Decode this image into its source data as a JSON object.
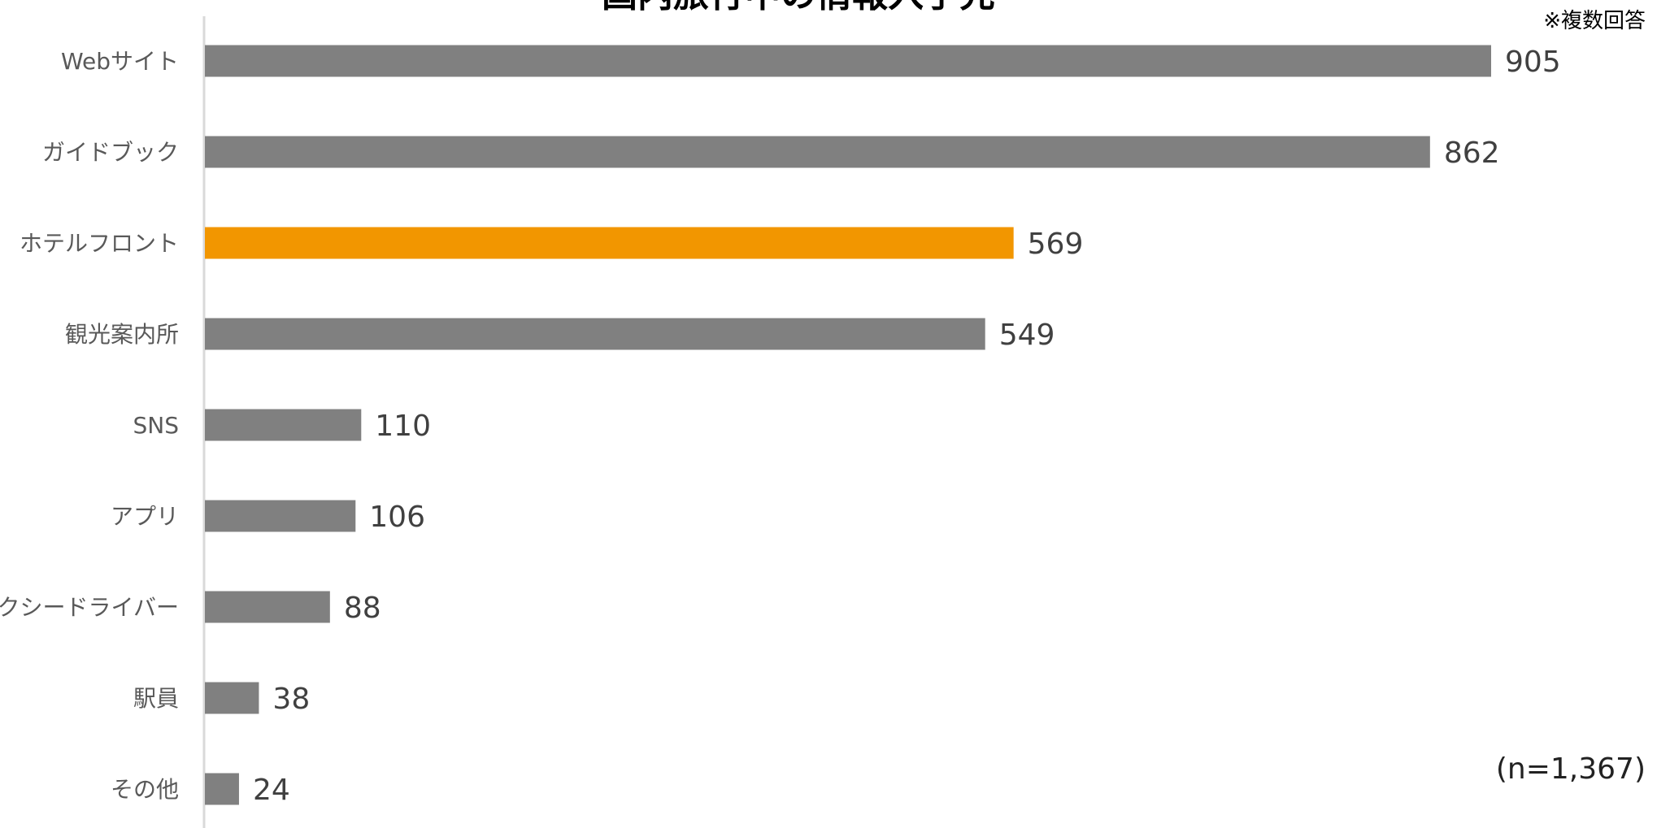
{
  "chart_data": {
    "type": "bar",
    "orientation": "horizontal",
    "title": "国内旅行中の情報入手先",
    "note": "※複数回答",
    "sample_label": "(n=1,367)",
    "categories": [
      "Webサイト",
      "ガイドブック",
      "ホテルフロント",
      "観光案内所",
      "SNS",
      "アプリ",
      "タクシードライバー",
      "駅員",
      "その他"
    ],
    "values": [
      905,
      862,
      569,
      549,
      110,
      106,
      88,
      38,
      24
    ],
    "xlim": [
      0,
      1000
    ],
    "highlight_index": 2,
    "colors": {
      "default": "#808080",
      "highlight": "#f29600",
      "axis": "#d9d9d9",
      "label": "#595959",
      "value": "#404040"
    },
    "grid": false,
    "legend": "none"
  }
}
